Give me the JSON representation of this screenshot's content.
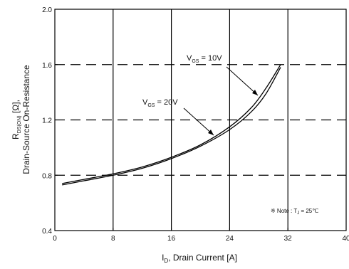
{
  "chart_data": {
    "type": "line",
    "xlabel_main": "I",
    "xlabel_sub": "D",
    "xlabel_rest": ", Drain Current [A]",
    "ylabel_line1_main": "R",
    "ylabel_line1_sub": "DS(ON)",
    "ylabel_line1_rest": " [Ω],",
    "ylabel_line2": "Drain-Source On-Resistance",
    "xlim": [
      0,
      40
    ],
    "ylim": [
      0.4,
      2.0
    ],
    "xticks": [
      "0",
      "8",
      "16",
      "24",
      "32",
      "40"
    ],
    "yticks": [
      "0.4",
      "0.8",
      "1.2",
      "1.6",
      "2.0"
    ],
    "vertical_grid": [
      8,
      16,
      24,
      32
    ],
    "horizontal_dashed_grid": [
      0.8,
      1.2,
      1.6
    ],
    "series": [
      {
        "label_main": "V",
        "label_sub": "GS",
        "label_rest": " = 10V",
        "x": [
          1,
          4,
          8,
          12,
          16,
          20,
          24,
          27,
          29,
          31
        ],
        "y": [
          0.74,
          0.77,
          0.81,
          0.86,
          0.93,
          1.02,
          1.15,
          1.29,
          1.43,
          1.6
        ]
      },
      {
        "label_main": "V",
        "label_sub": "GS",
        "label_rest": " = 20V",
        "x": [
          1,
          4,
          8,
          12,
          16,
          20,
          24,
          27,
          29,
          31
        ],
        "y": [
          0.73,
          0.76,
          0.8,
          0.85,
          0.92,
          1.01,
          1.13,
          1.26,
          1.39,
          1.58
        ]
      }
    ],
    "note_bullet": "※",
    "note_text": " Note : T",
    "note_sub": "J",
    "note_rest": " = 25℃"
  }
}
